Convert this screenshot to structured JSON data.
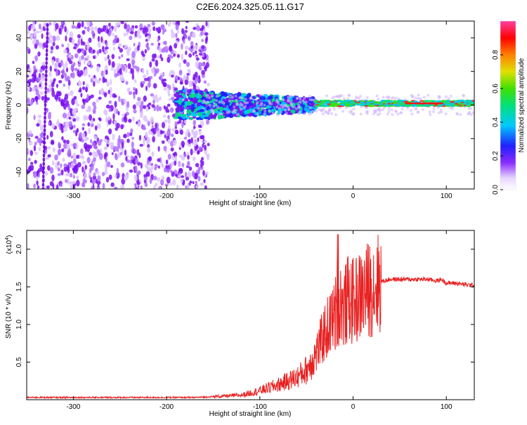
{
  "chart_data": [
    {
      "type": "heatmap",
      "title": "C2E6.2024.325.05.11.G17",
      "xlabel": "Height of straight line (km)",
      "ylabel": "Frequency (Hz)",
      "xlim": [
        -350,
        130
      ],
      "ylim": [
        -50,
        50
      ],
      "xticks": [
        "-300",
        "-200",
        "-100",
        "0",
        "100"
      ],
      "yticks": [
        "40",
        "20",
        "0",
        "-20",
        "-40"
      ],
      "grid": false,
      "colorbar": {
        "label": "Normalized spectral amplitude",
        "range": [
          0,
          1
        ],
        "ticks": [
          "0.0",
          "0.2",
          "0.4",
          "0.6",
          "0.8"
        ],
        "colors": [
          "#ffffff",
          "#d9b8ff",
          "#7a00ff",
          "#2020ff",
          "#00c8ff",
          "#00e07a",
          "#40e000",
          "#e0e000",
          "#ff8000",
          "#ff0000",
          "#ff40a0"
        ]
      },
      "description_bands": [
        {
          "x_range": [
            -350,
            -160
          ],
          "level": "low",
          "spread_hz": [
            -50,
            50
          ]
        },
        {
          "x_range": [
            -190,
            -40
          ],
          "level": "medium",
          "spread_hz": [
            -10,
            10
          ]
        },
        {
          "x_range": [
            -40,
            130
          ],
          "level": "high",
          "spread_hz": [
            -3,
            3
          ]
        }
      ]
    },
    {
      "type": "line",
      "title": "",
      "xlabel": "Height of straight line (km)",
      "ylabel": "SNR (10 * v/v)",
      "y_multiplier": "(x10^4)",
      "y_multiplier_base": "(x10",
      "y_multiplier_exp": "4",
      "y_multiplier_close": ")",
      "xlim": [
        -350,
        130
      ],
      "ylim": [
        0,
        2.25
      ],
      "xticks": [
        "-300",
        "-200",
        "-100",
        "0",
        "100"
      ],
      "yticks": [
        "2.0",
        "1.5",
        "1.0",
        "0.5"
      ],
      "series_color": "#e82020",
      "series": [
        {
          "name": "",
          "x": [
            -350,
            -300,
            -250,
            -200,
            -170,
            -150,
            -120,
            -100,
            -80,
            -60,
            -50,
            -40,
            -30,
            -20,
            -15,
            -10,
            -5,
            0,
            10,
            20,
            30,
            40,
            60,
            80,
            90,
            95,
            100,
            110,
            120,
            130
          ],
          "y": [
            0.03,
            0.03,
            0.03,
            0.03,
            0.03,
            0.04,
            0.06,
            0.12,
            0.2,
            0.3,
            0.4,
            0.6,
            0.9,
            1.1,
            1.3,
            1.2,
            1.35,
            1.3,
            1.4,
            1.5,
            1.57,
            1.6,
            1.6,
            1.6,
            1.58,
            1.6,
            1.55,
            1.55,
            1.53,
            1.52
          ]
        }
      ]
    }
  ]
}
